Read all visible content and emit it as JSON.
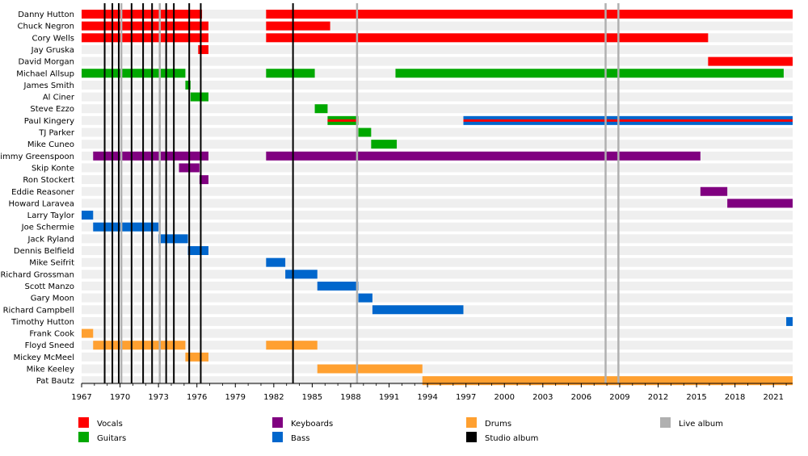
{
  "chart_data": {
    "type": "timeline",
    "x_range": [
      1967,
      2022.5
    ],
    "ticks": [
      1967,
      1970,
      1973,
      1976,
      1979,
      1982,
      1985,
      1988,
      1991,
      1994,
      1997,
      2000,
      2003,
      2006,
      2009,
      2012,
      2015,
      2018,
      2021
    ],
    "colors": {
      "vocals": "#ff0000",
      "guitars": "#00a800",
      "keyboards": "#800080",
      "bass": "#0066cc",
      "drums": "#ffa030",
      "live_album": "#b0b0b0",
      "studio_album": "#000000"
    },
    "members": [
      {
        "name": "Danny Hutton",
        "bars": [
          {
            "role": "vocals",
            "start": 1967,
            "end": 1976.4
          },
          {
            "role": "vocals",
            "start": 1981.4,
            "end": 2022.5
          }
        ]
      },
      {
        "name": "Chuck Negron",
        "bars": [
          {
            "role": "vocals",
            "start": 1967,
            "end": 1976.9
          },
          {
            "role": "vocals",
            "start": 1981.4,
            "end": 1986.4
          }
        ]
      },
      {
        "name": "Cory Wells",
        "bars": [
          {
            "role": "vocals",
            "start": 1967,
            "end": 1976.9
          },
          {
            "role": "vocals",
            "start": 1981.4,
            "end": 2015.9
          }
        ]
      },
      {
        "name": "Jay Gruska",
        "bars": [
          {
            "role": "vocals",
            "start": 1976.1,
            "end": 1976.9
          }
        ]
      },
      {
        "name": "David Morgan",
        "bars": [
          {
            "role": "vocals",
            "start": 2015.9,
            "end": 2022.5
          }
        ]
      },
      {
        "name": "Michael Allsup",
        "bars": [
          {
            "role": "guitars",
            "start": 1967,
            "end": 1975.1
          },
          {
            "role": "guitars",
            "start": 1981.4,
            "end": 1985.2
          },
          {
            "role": "guitars",
            "start": 1991.5,
            "end": 2021.8
          }
        ]
      },
      {
        "name": "James Smith",
        "bars": [
          {
            "role": "guitars",
            "start": 1975.1,
            "end": 1975.5
          }
        ]
      },
      {
        "name": "Al Ciner",
        "bars": [
          {
            "role": "guitars",
            "start": 1975.5,
            "end": 1976.9
          }
        ]
      },
      {
        "name": "Steve Ezzo",
        "bars": [
          {
            "role": "guitars",
            "start": 1985.2,
            "end": 1986.2
          }
        ]
      },
      {
        "name": "Paul Kingery",
        "bars": [
          {
            "role": "guitars",
            "start": 1986.2,
            "end": 1988.6,
            "accent": "vocals"
          },
          {
            "role": "bass",
            "start": 1996.8,
            "end": 2022.5,
            "accent": "vocals"
          }
        ]
      },
      {
        "name": "TJ Parker",
        "bars": [
          {
            "role": "guitars",
            "start": 1988.6,
            "end": 1989.6
          }
        ]
      },
      {
        "name": "Mike Cuneo",
        "bars": [
          {
            "role": "guitars",
            "start": 1989.6,
            "end": 1991.6
          }
        ]
      },
      {
        "name": "Jimmy Greenspoon",
        "bars": [
          {
            "role": "keyboards",
            "start": 1967.9,
            "end": 1976.9
          },
          {
            "role": "keyboards",
            "start": 1981.4,
            "end": 2015.3
          }
        ]
      },
      {
        "name": "Skip Konte",
        "bars": [
          {
            "role": "keyboards",
            "start": 1974.6,
            "end": 1976.2
          }
        ]
      },
      {
        "name": "Ron Stockert",
        "bars": [
          {
            "role": "keyboards",
            "start": 1976.2,
            "end": 1976.9
          }
        ]
      },
      {
        "name": "Eddie Reasoner",
        "bars": [
          {
            "role": "keyboards",
            "start": 2015.3,
            "end": 2017.4
          }
        ]
      },
      {
        "name": "Howard Laravea",
        "bars": [
          {
            "role": "keyboards",
            "start": 2017.4,
            "end": 2022.5
          }
        ]
      },
      {
        "name": "Larry Taylor",
        "bars": [
          {
            "role": "bass",
            "start": 1967,
            "end": 1967.9
          }
        ]
      },
      {
        "name": "Joe Schermie",
        "bars": [
          {
            "role": "bass",
            "start": 1967.9,
            "end": 1973.0
          }
        ]
      },
      {
        "name": "Jack Ryland",
        "bars": [
          {
            "role": "bass",
            "start": 1973.0,
            "end": 1975.3
          }
        ]
      },
      {
        "name": "Dennis Belfield",
        "bars": [
          {
            "role": "bass",
            "start": 1975.3,
            "end": 1976.9
          }
        ]
      },
      {
        "name": "Mike Seifrit",
        "bars": [
          {
            "role": "bass",
            "start": 1981.4,
            "end": 1982.9
          }
        ]
      },
      {
        "name": "Richard Grossman",
        "bars": [
          {
            "role": "bass",
            "start": 1982.9,
            "end": 1985.4
          }
        ]
      },
      {
        "name": "Scott Manzo",
        "bars": [
          {
            "role": "bass",
            "start": 1985.4,
            "end": 1988.6
          }
        ]
      },
      {
        "name": "Gary Moon",
        "bars": [
          {
            "role": "bass",
            "start": 1988.6,
            "end": 1989.7
          }
        ]
      },
      {
        "name": "Richard Campbell",
        "bars": [
          {
            "role": "bass",
            "start": 1989.7,
            "end": 1996.8
          }
        ]
      },
      {
        "name": "Timothy Hutton",
        "bars": [
          {
            "role": "bass",
            "start": 2022.0,
            "end": 2022.5
          }
        ]
      },
      {
        "name": "Frank Cook",
        "bars": [
          {
            "role": "drums",
            "start": 1967,
            "end": 1967.9
          }
        ]
      },
      {
        "name": "Floyd Sneed",
        "bars": [
          {
            "role": "drums",
            "start": 1967.9,
            "end": 1975.1
          },
          {
            "role": "drums",
            "start": 1981.4,
            "end": 1985.4
          }
        ]
      },
      {
        "name": "Mickey McMeel",
        "bars": [
          {
            "role": "drums",
            "start": 1975.1,
            "end": 1976.9
          }
        ]
      },
      {
        "name": "Mike Keeley",
        "bars": [
          {
            "role": "drums",
            "start": 1985.4,
            "end": 1993.6
          }
        ]
      },
      {
        "name": "Pat Bautz",
        "bars": [
          {
            "role": "drums",
            "start": 1993.6,
            "end": 2022.5
          }
        ]
      }
    ],
    "studio_albums": [
      1968.8,
      1969.4,
      1969.9,
      1970.9,
      1971.8,
      1972.5,
      1973.6,
      1974.2,
      1975.4,
      1976.3,
      1983.5
    ],
    "live_albums": [
      1970.1,
      1973.1,
      1988.5,
      2007.9,
      2008.9
    ],
    "legend": [
      {
        "key": "vocals",
        "label": "Vocals"
      },
      {
        "key": "keyboards",
        "label": "Keyboards"
      },
      {
        "key": "drums",
        "label": "Drums"
      },
      {
        "key": "live_album",
        "label": "Live album"
      },
      {
        "key": "guitars",
        "label": "Guitars"
      },
      {
        "key": "bass",
        "label": "Bass"
      },
      {
        "key": "studio_album",
        "label": "Studio album"
      }
    ]
  }
}
